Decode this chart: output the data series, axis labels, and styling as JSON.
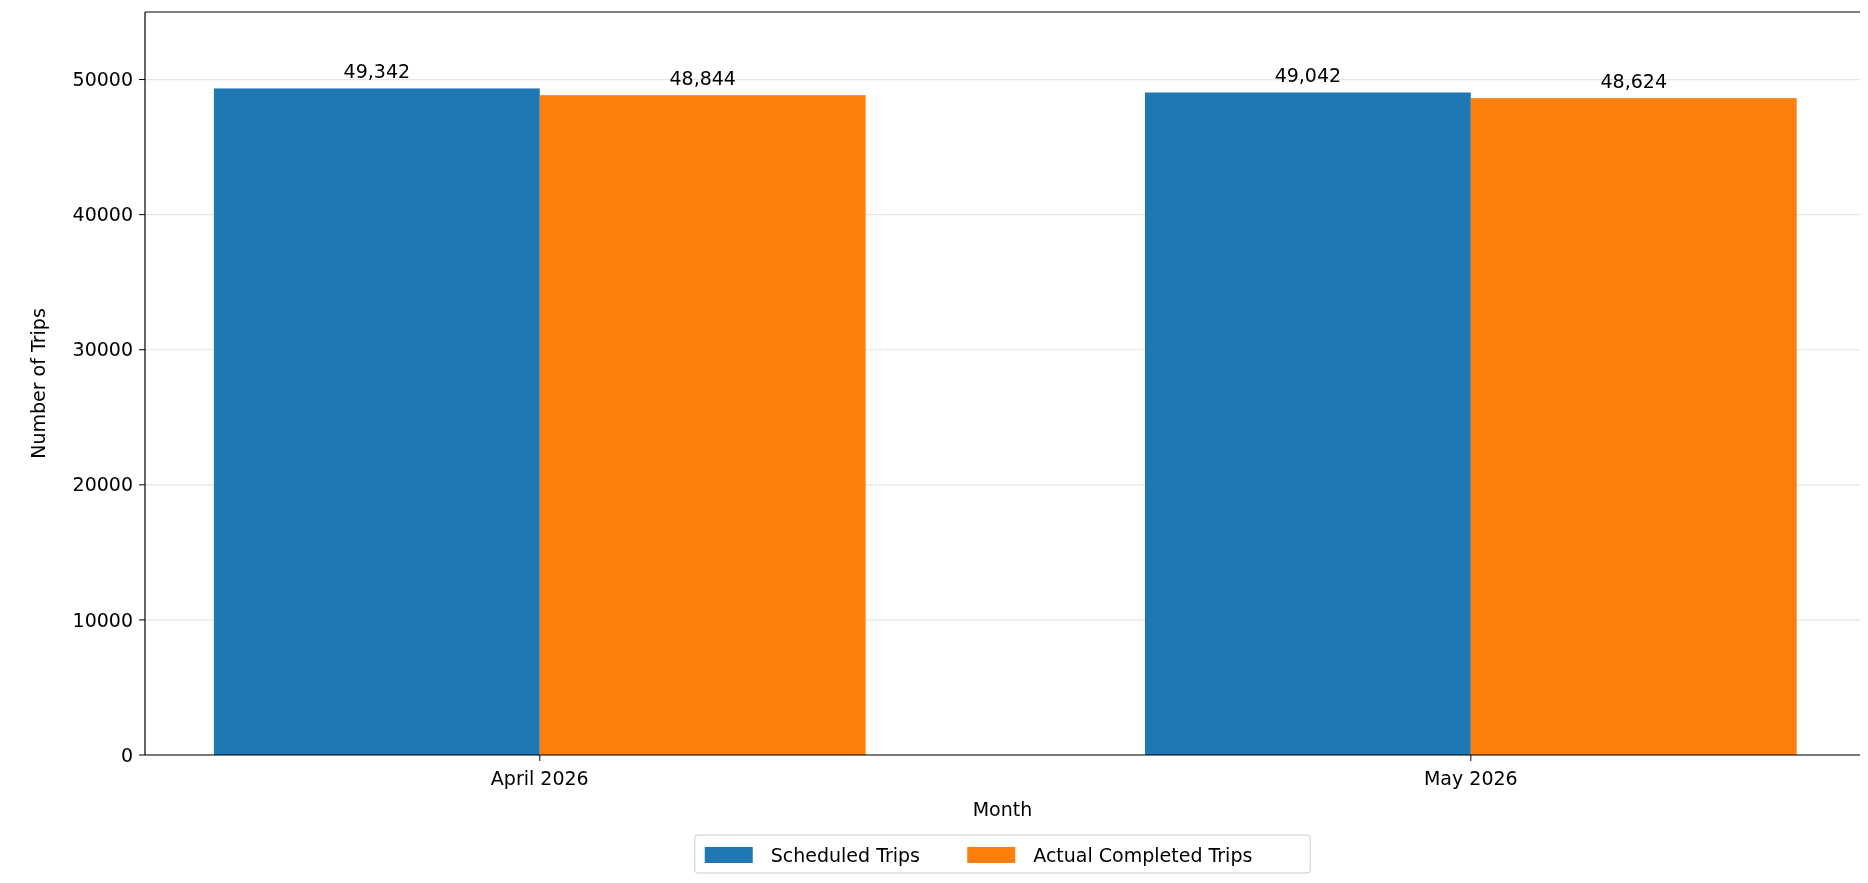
{
  "chart_data": {
    "type": "bar",
    "xlabel": "Month",
    "ylabel": "Number of Trips",
    "categories": [
      "April 2026",
      "May 2026"
    ],
    "series": [
      {
        "name": "Scheduled Trips",
        "color": "#1f77b4",
        "values": [
          49342,
          49042
        ],
        "value_labels": [
          "49,342",
          "49,042"
        ]
      },
      {
        "name": "Actual Completed Trips",
        "color": "#ff7f0e",
        "values": [
          48844,
          48624
        ],
        "value_labels": [
          "48,844",
          "48,624"
        ]
      }
    ],
    "ylim": [
      0,
      55000
    ],
    "yticks": [
      0,
      10000,
      20000,
      30000,
      40000,
      50000
    ],
    "grid": "y",
    "legend": "bottom"
  }
}
